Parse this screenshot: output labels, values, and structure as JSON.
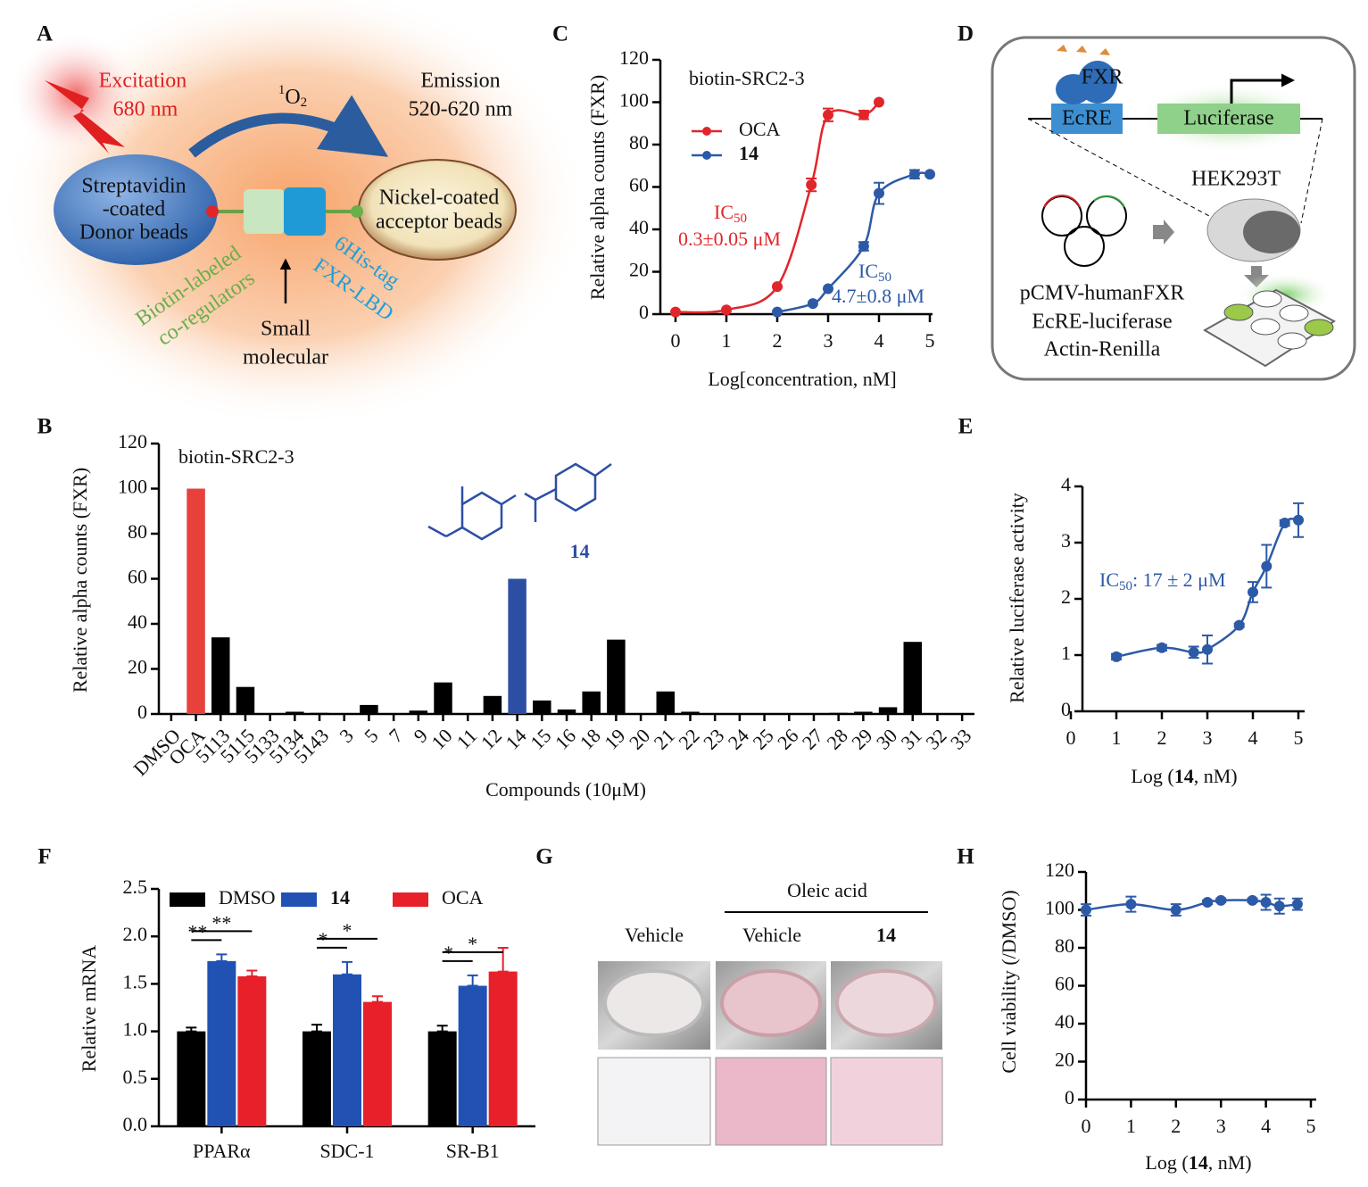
{
  "panel_labels": [
    "A",
    "B",
    "C",
    "D",
    "E",
    "F",
    "G",
    "H"
  ],
  "diagram_a": {
    "excitation": [
      "Excitation",
      "680 nm"
    ],
    "singlet_oxygen": {
      "sup": "1",
      "text": "O",
      "sub": "2"
    },
    "emission": [
      "Emission",
      "520-620 nm"
    ],
    "donor": [
      "Streptavidin",
      "-coated",
      "Donor beads"
    ],
    "acceptor": [
      "Nickel-coated",
      "acceptor beads"
    ],
    "coregulator": [
      "Biotin-labeled",
      "co-regulators"
    ],
    "receptor": [
      "6His-tag",
      "FXR-LBD"
    ],
    "ligand": [
      "Small",
      "molecular"
    ]
  },
  "diagram_d": {
    "protein": "FXR",
    "element": "EcRE",
    "reporter": "Luciferase",
    "cell": "HEK293T",
    "plasmids": [
      "pCMV-humanFXR",
      "EcRE-luciferase",
      "Actin-Renilla"
    ]
  },
  "panel_g": {
    "group": "Oleic acid",
    "columns": [
      {
        "text": "Vehicle"
      },
      {
        "text": "Vehicle"
      },
      {
        "text": "14",
        "bold": true
      }
    ]
  },
  "chart_data": [
    {
      "type": "bar",
      "title": "biotin-SRC2-3",
      "xlabel": "Compounds (10μM)",
      "ylabel": "Relative alpha counts (FXR)",
      "categories": [
        "DMSO",
        "OCA",
        "5113",
        "5115",
        "5133",
        "5134",
        "5143",
        "3",
        "5",
        "7",
        "9",
        "10",
        "11",
        "12",
        "14",
        "15",
        "16",
        "18",
        "19",
        "20",
        "21",
        "22",
        "23",
        "24",
        "25",
        "26",
        "27",
        "28",
        "29",
        "30",
        "31",
        "32",
        "33"
      ],
      "values": [
        0,
        100,
        34,
        12,
        0,
        1,
        0.5,
        0,
        4,
        0,
        1.5,
        14,
        0,
        8,
        60,
        6,
        2,
        10,
        33,
        0,
        10,
        1,
        0,
        0,
        0,
        0,
        0,
        0.5,
        1,
        3,
        32,
        0,
        0
      ],
      "colors": [
        "#000000",
        "#e8413c",
        "#000000",
        "#000000",
        "#000000",
        "#000000",
        "#000000",
        "#000000",
        "#000000",
        "#000000",
        "#000000",
        "#000000",
        "#000000",
        "#000000",
        "#2d4fa3",
        "#000000",
        "#000000",
        "#000000",
        "#000000",
        "#000000",
        "#000000",
        "#000000",
        "#000000",
        "#000000",
        "#000000",
        "#000000",
        "#000000",
        "#000000",
        "#000000",
        "#000000",
        "#000000",
        "#000000",
        "#000000"
      ],
      "annotation": "14",
      "ylim": [
        0,
        120
      ],
      "yticks": [
        0,
        20,
        40,
        60,
        80,
        100,
        120
      ]
    },
    {
      "type": "line",
      "title": "biotin-SRC2-3",
      "xlabel": "Log[concentration, nM]",
      "ylabel": "Relative alpha counts (FXR)",
      "series": [
        {
          "name": "OCA",
          "color": "#e0262b",
          "x": [
            0,
            1,
            2,
            2.67,
            3,
            3.7,
            4
          ],
          "values": [
            1,
            2,
            13,
            61,
            94,
            94,
            100
          ],
          "errors": [
            0,
            0,
            0,
            3,
            3,
            2,
            0
          ]
        },
        {
          "name": "14",
          "bold": true,
          "color": "#2d5aa6",
          "x": [
            2,
            2.7,
            3,
            3.7,
            4,
            4.7,
            5
          ],
          "values": [
            1,
            5,
            12,
            32,
            57,
            66,
            66
          ],
          "errors": [
            0,
            0,
            0,
            2,
            5,
            2,
            0
          ]
        }
      ],
      "annotations": [
        {
          "text": "IC",
          "sub": "50",
          "value": "0.3±0.05 μM",
          "color": "#e0262b"
        },
        {
          "text": "IC",
          "sub": "50",
          "value": "4.7±0.8 μM",
          "color": "#2d5aa6"
        }
      ],
      "xlim": [
        0,
        5
      ],
      "xticks": [
        0,
        1,
        2,
        3,
        4,
        5
      ],
      "ylim": [
        0,
        120
      ],
      "yticks": [
        0,
        20,
        40,
        60,
        80,
        100,
        120
      ]
    },
    {
      "type": "line",
      "xlabel": {
        "text": "Log (",
        "bold": "14",
        "rest": ", nM)"
      },
      "ylabel": "Relative luciferase activity",
      "color": "#2d5aa6",
      "x": [
        1,
        2,
        2.7,
        3,
        3.7,
        4,
        4.3,
        4.7,
        5
      ],
      "values": [
        0.97,
        1.13,
        1.05,
        1.1,
        1.53,
        2.12,
        2.58,
        3.35,
        3.4
      ],
      "errors": [
        0.05,
        0.05,
        0.1,
        0.25,
        0.03,
        0.18,
        0.38,
        0.05,
        0.3
      ],
      "annotations": [
        {
          "text": "IC",
          "sub": "50",
          "rest": ": 17 ± 2 μM",
          "color": "#2d5aa6"
        }
      ],
      "xlim": [
        0,
        5
      ],
      "xticks": [
        0,
        1,
        2,
        3,
        4,
        5
      ],
      "ylim": [
        0,
        4
      ],
      "yticks": [
        0,
        1,
        2,
        3,
        4
      ]
    },
    {
      "type": "grouped_bar",
      "ylabel": "Relative mRNA",
      "categories": [
        "PPARα",
        "SDC-1",
        "SR-B1"
      ],
      "series": [
        {
          "name": "DMSO",
          "color": "#000000",
          "values": [
            1.0,
            1.0,
            1.0
          ],
          "errors": [
            0.04,
            0.07,
            0.06
          ]
        },
        {
          "name": "14",
          "bold": true,
          "color": "#2152b3",
          "values": [
            1.74,
            1.6,
            1.48
          ],
          "errors": [
            0.07,
            0.13,
            0.11
          ]
        },
        {
          "name": "OCA",
          "color": "#e8202a",
          "values": [
            1.58,
            1.31,
            1.63
          ],
          "errors": [
            0.06,
            0.06,
            0.25
          ]
        }
      ],
      "significance": [
        [
          "**",
          "**"
        ],
        [
          "*",
          "*"
        ],
        [
          "*",
          "*"
        ]
      ],
      "ylim": [
        0,
        2.5
      ],
      "yticks": [
        {
          "value": 0,
          "label": "0.0"
        },
        0.5,
        {
          "value": 1,
          "label": "1.0"
        },
        1.5,
        {
          "value": 2,
          "label": "2.0"
        },
        2.5
      ]
    },
    {
      "type": "line",
      "xlabel": {
        "text": "Log (",
        "bold": "14",
        "rest": ", nM)"
      },
      "ylabel": "Cell viability (/DMSO)",
      "color": "#2d5aa6",
      "x": [
        0,
        1,
        2,
        2.7,
        3,
        3.7,
        4,
        4.3,
        4.7
      ],
      "values": [
        100,
        103,
        100,
        104,
        105,
        105,
        104,
        102,
        103
      ],
      "errors": [
        3,
        4,
        3,
        1,
        1,
        1,
        4,
        4,
        3
      ],
      "xlim": [
        0,
        5
      ],
      "xticks": [
        0,
        1,
        2,
        3,
        4,
        5
      ],
      "ylim": [
        0,
        120
      ],
      "yticks": [
        0,
        20,
        40,
        60,
        80,
        100,
        120
      ]
    }
  ]
}
